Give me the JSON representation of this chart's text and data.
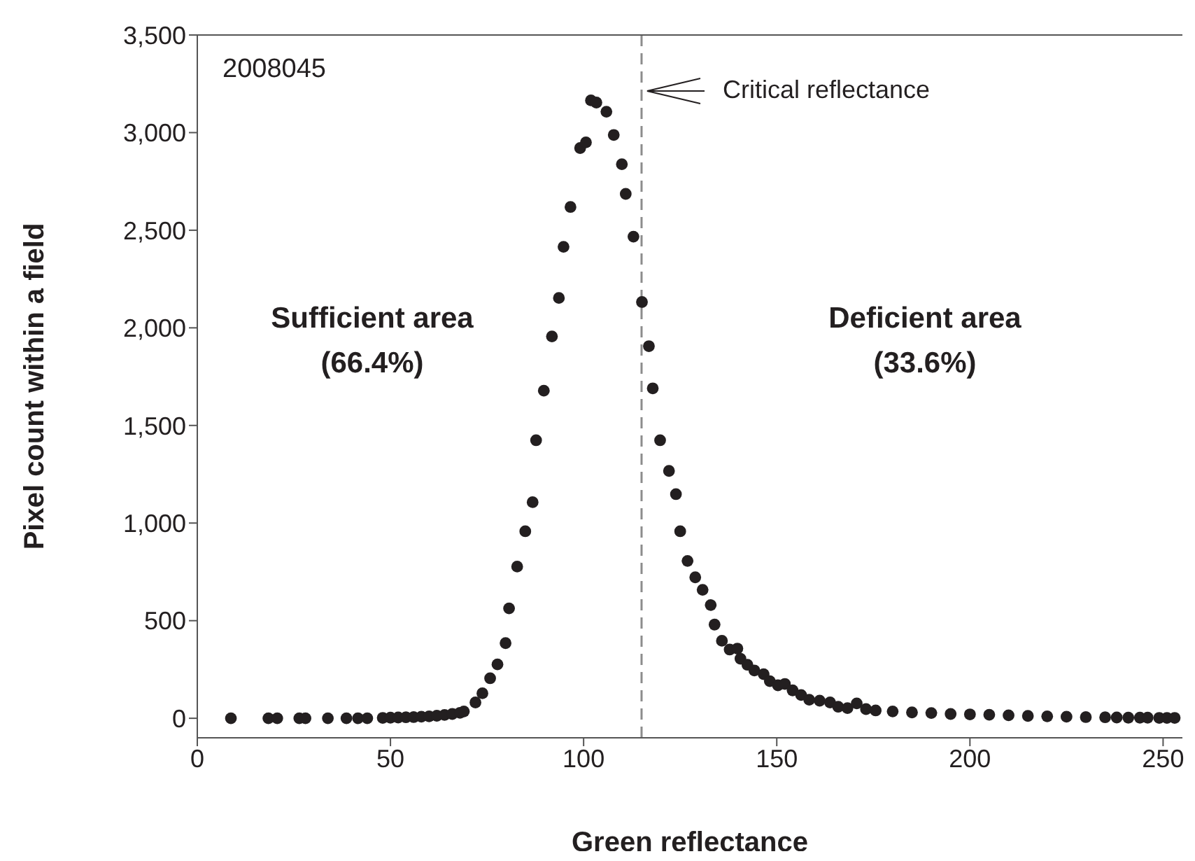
{
  "chart_data": {
    "type": "scatter",
    "xlabel": "Green reflectance",
    "ylabel": "Pixel count within a field",
    "x": [
      8.7,
      18.4,
      20.7,
      26.4,
      28,
      33.8,
      38.6,
      41.6,
      44,
      48,
      50,
      52,
      54,
      56,
      58,
      60,
      62,
      64,
      66,
      68,
      69,
      72,
      73.8,
      75.8,
      77.7,
      79.8,
      80.7,
      82.8,
      84.9,
      86.8,
      87.7,
      89.7,
      91.8,
      93.6,
      94.8,
      96.6,
      99.1,
      100.6,
      101.9,
      103.3,
      105.9,
      107.8,
      109.9,
      110.9,
      112.9,
      115.1,
      116.9,
      117.9,
      119.8,
      122.1,
      123.9,
      125,
      126.9,
      128.9,
      130.8,
      132.9,
      133.9,
      135.8,
      137.8,
      139.8,
      140.6,
      142.4,
      144.2,
      146.6,
      148.2,
      150.3,
      152.1,
      154.1,
      156.3,
      158.4,
      161.1,
      163.8,
      165.9,
      168.3,
      170.7,
      173.1,
      175.6,
      180,
      185,
      190,
      195,
      200,
      205,
      210,
      215,
      220,
      225,
      230,
      235,
      238,
      241,
      244,
      246,
      249,
      251,
      253
    ],
    "values": [
      0,
      0,
      0,
      0,
      0,
      0,
      0,
      0,
      0,
      2,
      3,
      4,
      5,
      6,
      8,
      10,
      13,
      17,
      22,
      28,
      35,
      81,
      128,
      205,
      276,
      385,
      563,
      777,
      958,
      1107,
      1424,
      1678,
      1956,
      2153,
      2415,
      2619,
      2921,
      2950,
      3165,
      3154,
      3107,
      2988,
      2838,
      2686,
      2467,
      2132,
      1906,
      1690,
      1424,
      1267,
      1148,
      958,
      806,
      722,
      658,
      580,
      480,
      397,
      352,
      357,
      305,
      274,
      245,
      226,
      190,
      169,
      176,
      143,
      119,
      95,
      90,
      81,
      59,
      52,
      76,
      47,
      40,
      35,
      30,
      27,
      22,
      20,
      18,
      15,
      12,
      10,
      8,
      6,
      5,
      4,
      3,
      3,
      3,
      2,
      2,
      2
    ],
    "color": "#231f20",
    "marker": "circle",
    "xlim": [
      0,
      255
    ],
    "xticks": [
      0,
      50,
      100,
      150,
      200,
      250
    ],
    "ylim": [
      -100,
      3500
    ],
    "yticks": [
      {
        "value": 0,
        "label": "0"
      },
      {
        "value": 500,
        "label": "500"
      },
      {
        "value": 1000,
        "label": "1,000"
      },
      {
        "value": 1500,
        "label": "1,500"
      },
      {
        "value": 2000,
        "label": "2,000"
      },
      {
        "value": 2500,
        "label": "2,500"
      },
      {
        "value": 3000,
        "label": "3,000"
      },
      {
        "value": 3500,
        "label": "3,500"
      }
    ],
    "ref_lines": [
      {
        "axis": "x",
        "value": 115,
        "label": "Critical reflectance",
        "color": "#8c8c8c",
        "line_style": "dashed"
      }
    ],
    "annotations": [
      "2008045",
      "Sufficient area\n(66.4%)",
      "Deficient area\n(33.6%)"
    ]
  }
}
